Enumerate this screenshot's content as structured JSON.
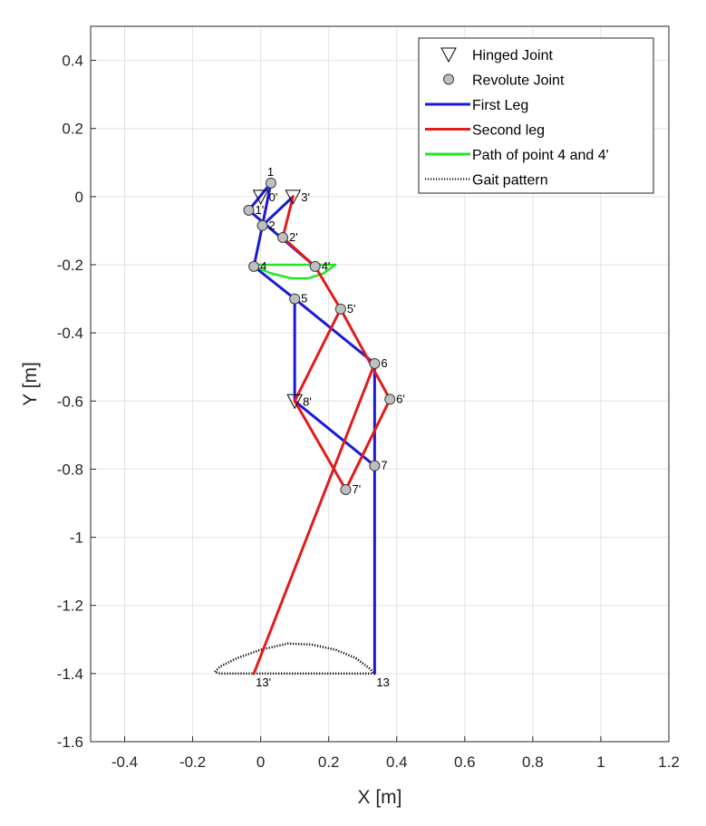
{
  "chart_data": {
    "type": "line",
    "title": "",
    "xlabel": "X [m]",
    "ylabel": "Y [m]",
    "xlim": [
      -0.5,
      1.2
    ],
    "ylim": [
      -1.6,
      0.5
    ],
    "xticks": [
      -0.4,
      -0.2,
      0,
      0.2,
      0.4,
      0.6,
      0.8,
      1,
      1.2
    ],
    "xtick_labels": [
      "-0.4",
      "-0.2",
      "0",
      "0.2",
      "0.4",
      "0.6",
      "0.8",
      "1",
      "1.2"
    ],
    "yticks": [
      -1.6,
      -1.4,
      -1.2,
      -1,
      -0.8,
      -0.6,
      -0.4,
      -0.2,
      0,
      0.2,
      0.4
    ],
    "ytick_labels": [
      "-1.6",
      "-1.4",
      "-1.2",
      "-1",
      "-0.8",
      "-0.6",
      "-0.4",
      "-0.2",
      "0",
      "0.2",
      "0.4"
    ],
    "grid": true,
    "legend_position": "top-right",
    "colors": {
      "first_leg": "#1a1ad6",
      "second_leg": "#e01c1c",
      "path": "#22e622",
      "gait": "#000000",
      "joint_fill": "#bfbfbf"
    },
    "legend": [
      {
        "label": "Hinged Joint",
        "kind": "hinge"
      },
      {
        "label": "Revolute Joint",
        "kind": "revolute"
      },
      {
        "label": "First Leg",
        "kind": "first"
      },
      {
        "label": "Second leg",
        "kind": "second"
      },
      {
        "label": "Path of point 4 and 4'",
        "kind": "path"
      },
      {
        "label": "Gait pattern",
        "kind": "gait"
      }
    ],
    "first_leg_segments": [
      [
        [
          0.03,
          0.04
        ],
        [
          -0.035,
          -0.04
        ]
      ],
      [
        [
          0.03,
          0.04
        ],
        [
          0.005,
          -0.085
        ]
      ],
      [
        [
          0.095,
          0.0
        ],
        [
          0.005,
          -0.085
        ]
      ],
      [
        [
          0.005,
          -0.085
        ],
        [
          -0.02,
          -0.205
        ]
      ],
      [
        [
          -0.035,
          -0.04
        ],
        [
          0.16,
          -0.205
        ]
      ],
      [
        [
          -0.02,
          -0.205
        ],
        [
          0.1,
          -0.3
        ]
      ],
      [
        [
          0.1,
          -0.3
        ],
        [
          0.335,
          -0.49
        ]
      ],
      [
        [
          0.1,
          -0.3
        ],
        [
          0.1,
          -0.6
        ]
      ],
      [
        [
          0.1,
          -0.6
        ],
        [
          0.335,
          -0.79
        ]
      ],
      [
        [
          0.335,
          -0.49
        ],
        [
          0.335,
          -1.4
        ]
      ]
    ],
    "second_leg_segments": [
      [
        [
          0.095,
          0.0
        ],
        [
          0.065,
          -0.12
        ]
      ],
      [
        [
          0.065,
          -0.12
        ],
        [
          0.16,
          -0.205
        ]
      ],
      [
        [
          0.16,
          -0.205
        ],
        [
          0.235,
          -0.33
        ]
      ],
      [
        [
          0.235,
          -0.33
        ],
        [
          0.1,
          -0.6
        ]
      ],
      [
        [
          0.235,
          -0.33
        ],
        [
          0.38,
          -0.595
        ]
      ],
      [
        [
          0.38,
          -0.595
        ],
        [
          0.25,
          -0.86
        ]
      ],
      [
        [
          0.1,
          -0.6
        ],
        [
          0.25,
          -0.86
        ]
      ],
      [
        [
          0.335,
          -0.49
        ],
        [
          -0.02,
          -1.4
        ]
      ]
    ],
    "path_points": [
      [
        -0.02,
        -0.205
      ],
      [
        0.03,
        -0.225
      ],
      [
        0.09,
        -0.24
      ],
      [
        0.14,
        -0.24
      ],
      [
        0.185,
        -0.225
      ],
      [
        0.22,
        -0.2
      ],
      [
        0.18,
        -0.2
      ],
      [
        0.12,
        -0.2
      ],
      [
        0.05,
        -0.2
      ],
      [
        -0.02,
        -0.2
      ]
    ],
    "gait_points": [
      [
        -0.02,
        -1.4
      ],
      [
        0.05,
        -1.4
      ],
      [
        0.15,
        -1.4
      ],
      [
        0.25,
        -1.4
      ],
      [
        0.335,
        -1.4
      ],
      [
        0.32,
        -1.385
      ],
      [
        0.28,
        -1.355
      ],
      [
        0.22,
        -1.33
      ],
      [
        0.15,
        -1.315
      ],
      [
        0.08,
        -1.312
      ],
      [
        0.0,
        -1.33
      ],
      [
        -0.07,
        -1.355
      ],
      [
        -0.12,
        -1.38
      ],
      [
        -0.135,
        -1.395
      ],
      [
        -0.12,
        -1.4
      ],
      [
        -0.02,
        -1.4
      ]
    ],
    "hinged_joints": [
      {
        "label": "0'",
        "x": 0.0,
        "y": 0.0
      },
      {
        "label": "3'",
        "x": 0.095,
        "y": 0.0
      },
      {
        "label": "8'",
        "x": 0.1,
        "y": -0.6
      }
    ],
    "revolute_joints": [
      {
        "label": "1",
        "x": 0.03,
        "y": 0.04
      },
      {
        "label": "1'",
        "x": -0.035,
        "y": -0.04
      },
      {
        "label": "2",
        "x": 0.005,
        "y": -0.085
      },
      {
        "label": "2'",
        "x": 0.065,
        "y": -0.12
      },
      {
        "label": "4",
        "x": -0.02,
        "y": -0.205
      },
      {
        "label": "4'",
        "x": 0.16,
        "y": -0.205
      },
      {
        "label": "5",
        "x": 0.1,
        "y": -0.3
      },
      {
        "label": "5'",
        "x": 0.235,
        "y": -0.33
      },
      {
        "label": "6",
        "x": 0.335,
        "y": -0.49
      },
      {
        "label": "6'",
        "x": 0.38,
        "y": -0.595
      },
      {
        "label": "7",
        "x": 0.335,
        "y": -0.79
      },
      {
        "label": "7'",
        "x": 0.25,
        "y": -0.86
      }
    ],
    "point_labels": [
      {
        "label": "13",
        "x": 0.335,
        "y": -1.4
      },
      {
        "label": "13'",
        "x": -0.02,
        "y": -1.4
      }
    ]
  }
}
